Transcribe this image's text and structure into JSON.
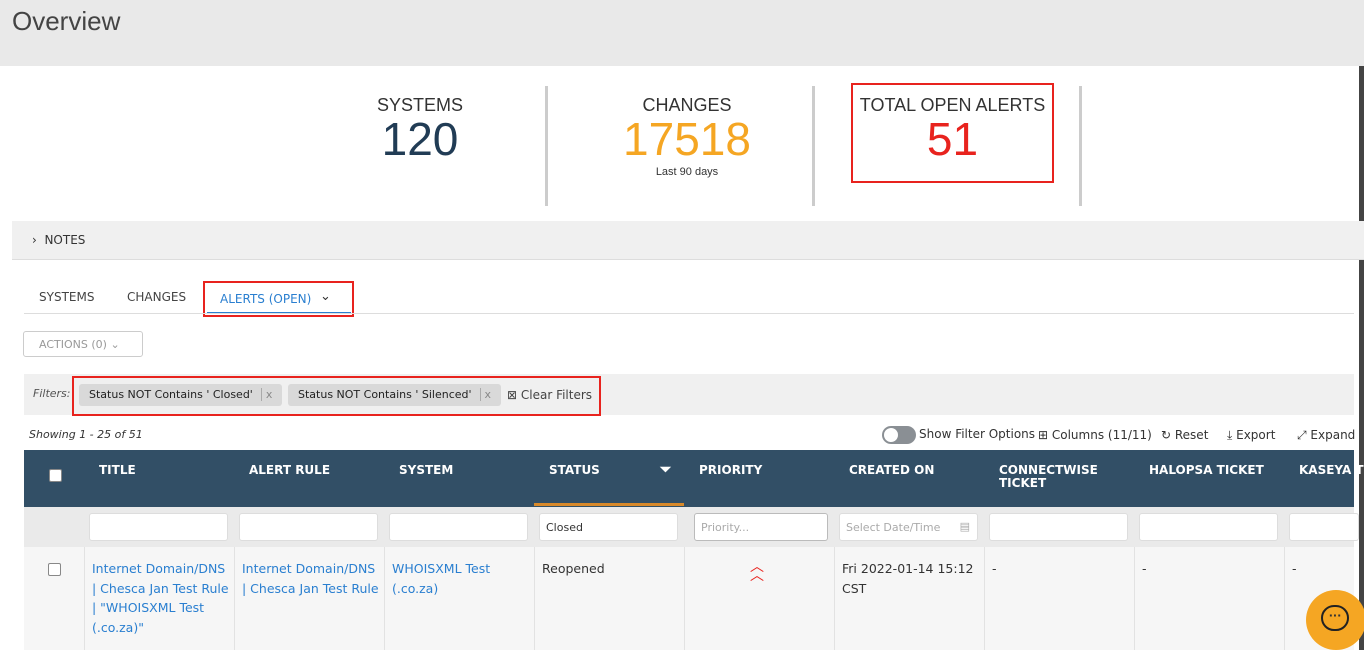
{
  "page": {
    "title": "Overview"
  },
  "stats": [
    {
      "label": "SYSTEMS",
      "value": "120",
      "color": "#213c55"
    },
    {
      "label": "CHANGES",
      "value": "17518",
      "sub": "Last 90 days",
      "color": "#f5a623"
    },
    {
      "label": "TOTAL OPEN ALERTS",
      "value": "51",
      "color": "#e8231e"
    }
  ],
  "notes": {
    "label": "NOTES"
  },
  "tabs": [
    {
      "label": "SYSTEMS"
    },
    {
      "label": "CHANGES"
    },
    {
      "label": "ALERTS (OPEN)",
      "active": true
    }
  ],
  "actions": {
    "label": "ACTIONS (0)"
  },
  "filters": {
    "label": "Filters:",
    "chips": [
      "Status NOT Contains ' Closed'",
      "Status NOT Contains ' Silenced'"
    ],
    "chip_remove": "x",
    "clear": "Clear Filters"
  },
  "toolbar": {
    "showing": "Showing 1 - 25 of 51",
    "show_filter_options": "Show Filter Options",
    "columns": "Columns (11/11)",
    "reset": "Reset",
    "export": "Export",
    "expand": "Expand"
  },
  "table": {
    "columns": [
      "TITLE",
      "ALERT RULE",
      "SYSTEM",
      "STATUS",
      "PRIORITY",
      "CREATED ON",
      "CONNECTWISE TICKET",
      "HALOPSA TICKET",
      "KASEYA TICKET"
    ],
    "filters": {
      "status": "Closed",
      "priority_placeholder": "Priority...",
      "date_placeholder": "Select Date/Time"
    },
    "rows": [
      {
        "title": "Internet Domain/DNS | Chesca Jan Test Rule | \"WHOISXML Test (.co.za)\"",
        "alert_rule": "Internet Domain/DNS | Chesca Jan Test Rule",
        "system": "WHOISXML Test (.co.za)",
        "status": "Reopened",
        "priority": "high",
        "created_on": "Fri 2022-01-14 15:12 CST",
        "connectwise": "-",
        "halopsa": "-",
        "kaseya": "-"
      }
    ]
  },
  "colors": {
    "header": "#324f66",
    "accent": "#2a7fd0",
    "highlight": "#e8231e",
    "chat": "#f5a623"
  }
}
